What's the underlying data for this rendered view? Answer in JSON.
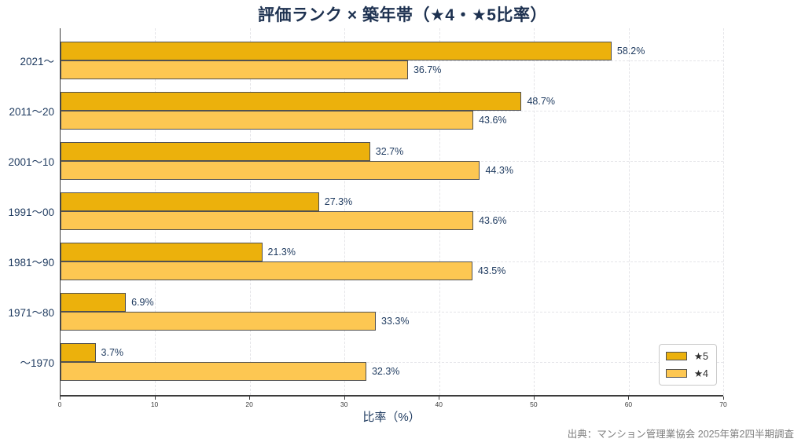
{
  "chart_data": {
    "type": "bar",
    "orientation": "horizontal",
    "title": "評価ランク × 築年帯（★4・★5比率）",
    "xlabel": "比率（%）",
    "ylabel": "",
    "xlim": [
      0,
      70
    ],
    "xticks": [
      0,
      10,
      20,
      30,
      40,
      50,
      60,
      70
    ],
    "grid": true,
    "legend_position": "lower right",
    "value_label_suffix": "%",
    "categories": [
      "2021〜",
      "2011〜20",
      "2001〜10",
      "1991〜00",
      "1981〜90",
      "1971〜80",
      "〜1970"
    ],
    "series": [
      {
        "name": "★5",
        "color": "#ecb10c",
        "values": [
          58.2,
          48.7,
          32.7,
          27.3,
          21.3,
          6.9,
          3.7
        ]
      },
      {
        "name": "★4",
        "color": "#fdc752",
        "values": [
          36.7,
          43.6,
          44.3,
          43.6,
          43.5,
          33.3,
          32.3
        ]
      }
    ],
    "source": "出典：マンション管理業協会 2025年第2四半期調査"
  },
  "colors": {
    "title_text": "#1d3150",
    "axis_text": "#1e3a5f",
    "bar_border": "#515151",
    "gridline": "#e4e4e8",
    "source_text": "#7e7e7e"
  }
}
